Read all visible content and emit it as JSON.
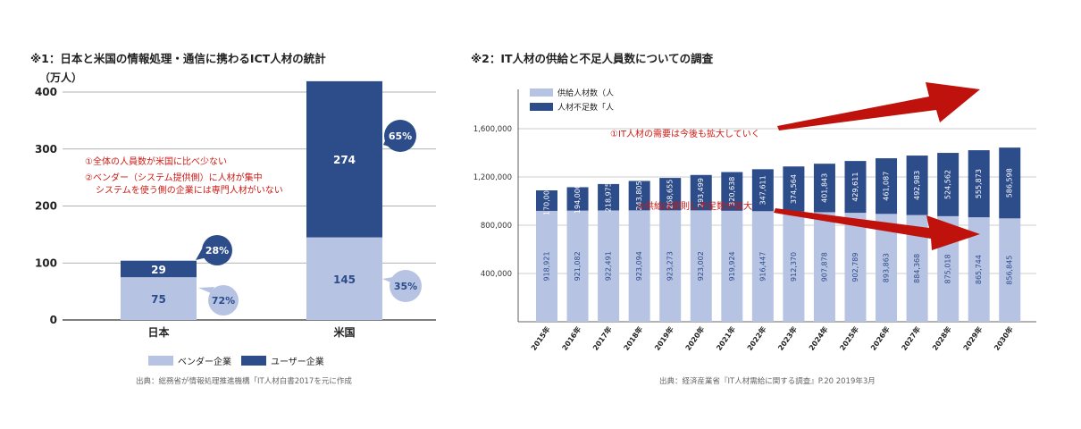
{
  "colors": {
    "vendor": "#b7c3e2",
    "user": "#2c4c8a",
    "grid": "#999999",
    "axis": "#333333",
    "annotation": "#cc1a14",
    "arrow": "#c0120c",
    "bubble_dark": "#2c4c8a",
    "bubble_light": "#b7c3e2"
  },
  "left": {
    "title": "※1：日本と米国の情報処理・通信に携わるICT人材の統計",
    "source": "出典：総務省が情報処理推進機構「IT人材白書2017を元に作成",
    "note1": "①全体の人員数が米国に比べ少ない",
    "note2a": "②ベンダー（システム提供側）に人材が集中",
    "note2b": "システムを使う側の企業には専門人材がいない"
  },
  "right": {
    "title": "※2：IT人材の供給と不足人員数についての調査",
    "source": "出典：経済産業省『IT人材需給に関する調査』P.20 2019年3月",
    "note1": "①IT人材の需要は今後も拡大していく",
    "note2": "②供給は原則し不足数が拡大"
  },
  "chart_data": [
    {
      "type": "bar",
      "stacked": true,
      "unit_label": "（万人）",
      "categories": [
        "日本",
        "米国"
      ],
      "series": [
        {
          "name": "ベンダー企業",
          "values": [
            75,
            145
          ],
          "share_labels": [
            "72%",
            "35%"
          ]
        },
        {
          "name": "ユーザー企業",
          "values": [
            29,
            274
          ],
          "share_labels": [
            "28%",
            "65%"
          ]
        }
      ],
      "ylim": [
        0,
        400
      ],
      "yticks": [
        0,
        100,
        200,
        300,
        400
      ],
      "grid": true,
      "legend": "bottom"
    },
    {
      "type": "bar",
      "stacked": true,
      "categories": [
        "2015年",
        "2016年",
        "2017年",
        "2018年",
        "2019年",
        "2020年",
        "2021年",
        "2022年",
        "2023年",
        "2024年",
        "2025年",
        "2026年",
        "2027年",
        "2028年",
        "2029年",
        "2030年"
      ],
      "series": [
        {
          "name": "供給人材数（人",
          "values": [
            918921,
            921082,
            922491,
            923094,
            923273,
            923002,
            919924,
            916447,
            912370,
            907878,
            902789,
            893863,
            884368,
            875018,
            865744,
            856845
          ],
          "labels": [
            "918,921",
            "921,082",
            "922,491",
            "923,094",
            "923,273",
            "923,002",
            "919,924",
            "916,447",
            "912,370",
            "907,878",
            "902,789",
            "893,863",
            "884,368",
            "875,018",
            "865,744",
            "856,845"
          ]
        },
        {
          "name": "人材不足数「人",
          "values": [
            170000,
            194000,
            218975,
            243805,
            268655,
            293499,
            320638,
            347611,
            374564,
            401843,
            429611,
            461087,
            492983,
            524562,
            555873,
            586598
          ],
          "labels": [
            "170,000",
            "194,000",
            "218,975",
            "243,805",
            "268,655",
            "293,499",
            "320,638",
            "347,611",
            "374,564",
            "401,843",
            "429,611",
            "461,087",
            "492,983",
            "524,562",
            "555,873",
            "586,598"
          ]
        }
      ],
      "yticks": [
        "400,000",
        "800,000",
        "1,200,000",
        "1,600,000"
      ],
      "ytick_values": [
        400000,
        800000,
        1200000,
        1600000
      ],
      "ylim": [
        0,
        1750000
      ],
      "grid": true,
      "legend": "top-left"
    }
  ]
}
